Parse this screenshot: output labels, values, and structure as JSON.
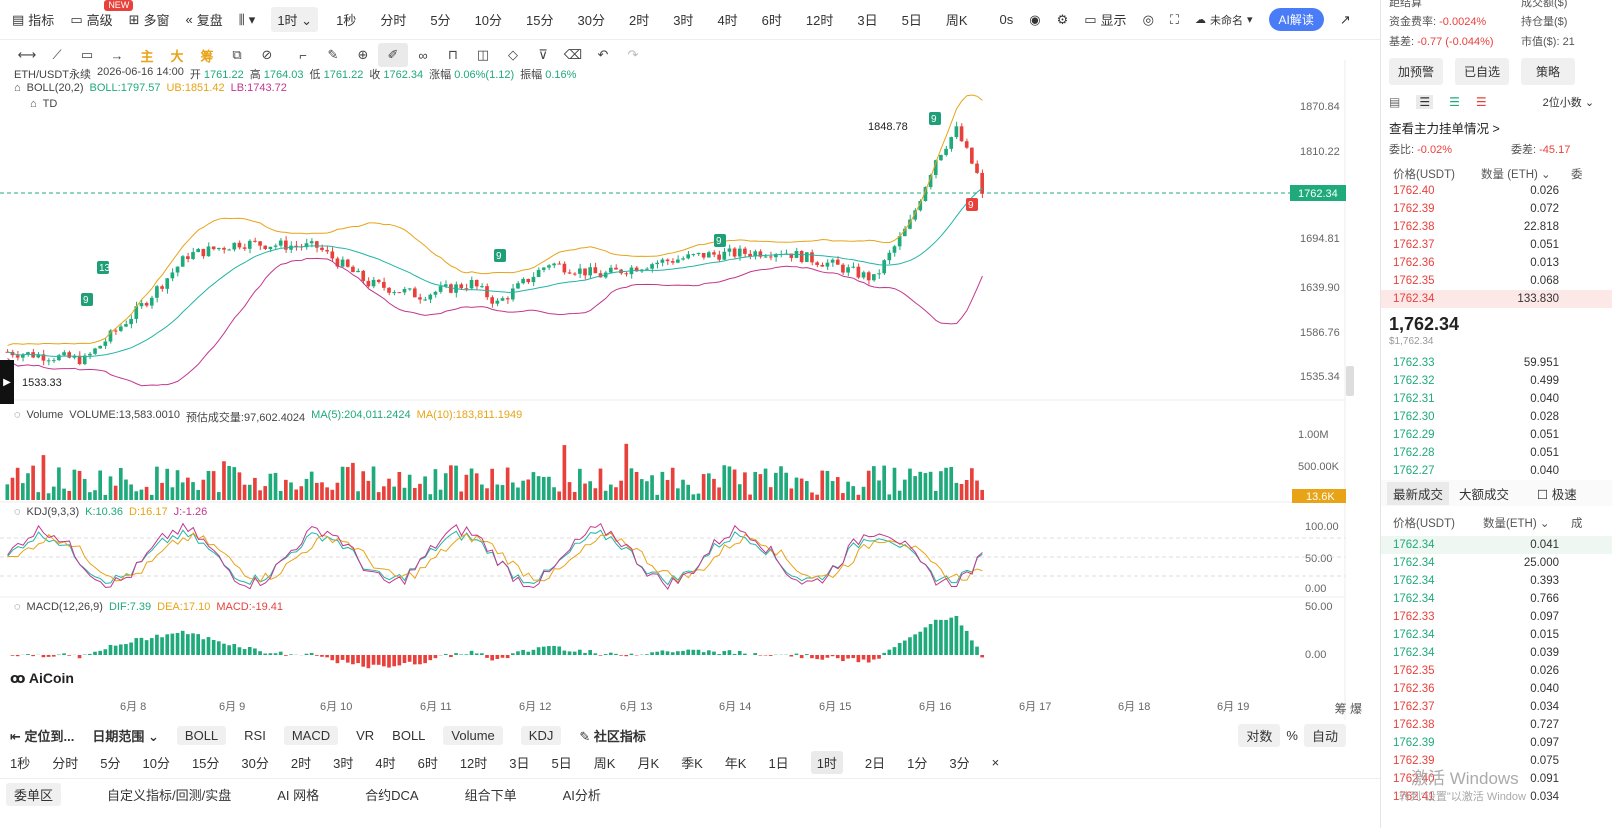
{
  "toolbar": {
    "indicator": "指标",
    "advanced": "高级",
    "new_badge": "NEW",
    "multi": "多窗",
    "replay": "复盘",
    "interval": "1时",
    "intervals": [
      "1秒",
      "分时",
      "5分",
      "10分",
      "15分",
      "30分",
      "2时",
      "3时",
      "4时",
      "6时",
      "12时",
      "3日",
      "5日",
      "周K"
    ],
    "countdown": "0s",
    "display": "显示",
    "account": "未命名",
    "ai": "AI解读"
  },
  "draw_tools": {
    "main": "主",
    "big": "大",
    "chips": "筹"
  },
  "chart_info": {
    "pair": "ETH/USDT永续",
    "time": "2026-06-16 14:00",
    "open_l": "开",
    "open": "1761.22",
    "high_l": "高",
    "high": "1764.03",
    "low_l": "低",
    "low": "1761.22",
    "close_l": "收",
    "close": "1762.34",
    "chg_l": "涨幅",
    "chg": "0.06%(1.12)",
    "amp_l": "振幅",
    "amp": "0.16%"
  },
  "boll": {
    "label": "BOLL(20,2)",
    "boll": "BOLL:1797.57",
    "ub": "UB:1851.42",
    "lb": "LB:1743.72"
  },
  "td": {
    "label": "TD"
  },
  "price_axis": [
    "1870.84",
    "1810.22",
    "1694.81",
    "1639.90",
    "1586.76",
    "1535.34"
  ],
  "current_price_tag": "1762.34",
  "annotations": {
    "high": "1848.78",
    "low": "1533.33",
    "td": [
      "13",
      "9",
      "9",
      "9",
      "9",
      "9"
    ],
    "td_red": "9"
  },
  "volume": {
    "label": "Volume",
    "vol": "VOLUME:13,583.0010",
    "est": "预估成交量:97,602.4024",
    "ma5": "MA(5):204,011.2424",
    "ma10": "MA(10):183,811.1949",
    "axis": [
      "1.00M",
      "500.00K"
    ],
    "tag": "13.6K"
  },
  "kdj": {
    "label": "KDJ(9,3,3)",
    "k": "K:10.36",
    "d": "D:16.17",
    "j": "J:-1.26",
    "axis": [
      "100.00",
      "50.00",
      "0.00"
    ]
  },
  "macd": {
    "label": "MACD(12,26,9)",
    "dif": "DIF:7.39",
    "dea": "DEA:17.10",
    "macd": "MACD:-19.41",
    "axis": [
      "50.00",
      "0.00"
    ]
  },
  "logo": "AiCoin",
  "dates": [
    "6月 8",
    "6月 9",
    "6月 10",
    "6月 11",
    "6月 12",
    "6月 13",
    "6月 14",
    "6月 15",
    "6月 16",
    "6月 17",
    "6月 18",
    "6月 19"
  ],
  "axis_corner": "筹 爆",
  "bottom1": {
    "locate": "定位到...",
    "range": "日期范围",
    "boll": "BOLL",
    "rsi": "RSI",
    "macd": "MACD",
    "vr": "VR",
    "boll2": "BOLL",
    "volume": "Volume",
    "kdj": "KDJ",
    "community": "社区指标",
    "log": "对数",
    "pct": "%",
    "auto": "自动"
  },
  "bottom2": [
    "1秒",
    "分时",
    "5分",
    "10分",
    "15分",
    "30分",
    "2时",
    "3时",
    "4时",
    "6时",
    "12时",
    "3日",
    "5日",
    "周K",
    "月K",
    "季K",
    "年K",
    "1日",
    "1时",
    "2日",
    "1分",
    "3分",
    "×"
  ],
  "bottom3": [
    "委单区",
    "自定义指标/回测/实盘",
    "AI 网格",
    "合约DCA",
    "组合下单",
    "AI分析"
  ],
  "right": {
    "top_cut1": "距结算",
    "top_cut2": "成交额($)",
    "funding_l": "资金费率:",
    "funding": "-0.0024%",
    "oi_l": "持仓量($)",
    "basis_l": "基差:",
    "basis": "-0.77 (-0.044%)",
    "mkt_l": "市值($):",
    "mkt": "21",
    "buttons": [
      "加预警",
      "已自选",
      "策略"
    ],
    "precision": "2位小数",
    "main_orders": "查看主力挂单情况 >",
    "ratio_l": "委比:",
    "ratio": "-0.02%",
    "diff_l": "委差:",
    "diff": "-45.17",
    "col_price": "价格(USDT)",
    "col_qty": "数量 (ETH)",
    "col_x": "委",
    "asks": [
      [
        "1762.40",
        "0.026"
      ],
      [
        "1762.39",
        "0.072"
      ],
      [
        "1762.38",
        "22.818"
      ],
      [
        "1762.37",
        "0.051"
      ],
      [
        "1762.36",
        "0.013"
      ],
      [
        "1762.35",
        "0.068"
      ],
      [
        "1762.34",
        "133.830"
      ]
    ],
    "last": "1,762.34",
    "last_usd": "$1,762.34",
    "bids": [
      [
        "1762.33",
        "59.951"
      ],
      [
        "1762.32",
        "0.499"
      ],
      [
        "1762.31",
        "0.040"
      ],
      [
        "1762.30",
        "0.028"
      ],
      [
        "1762.29",
        "0.051"
      ],
      [
        "1762.28",
        "0.051"
      ],
      [
        "1762.27",
        "0.040"
      ]
    ],
    "tabs": [
      "最新成交",
      "大额成交"
    ],
    "fast": "极速",
    "t_col_price": "价格(USDT)",
    "t_col_qty": "数量(ETH)",
    "t_col_x": "成",
    "trades": [
      [
        "1762.34",
        "0.041",
        "g"
      ],
      [
        "1762.34",
        "25.000",
        "g"
      ],
      [
        "1762.34",
        "0.393",
        "g"
      ],
      [
        "1762.34",
        "0.766",
        "g"
      ],
      [
        "1762.33",
        "0.097",
        "r"
      ],
      [
        "1762.34",
        "0.015",
        "g"
      ],
      [
        "1762.34",
        "0.039",
        "g"
      ],
      [
        "1762.35",
        "0.026",
        "r"
      ],
      [
        "1762.36",
        "0.040",
        "r"
      ],
      [
        "1762.37",
        "0.034",
        "r"
      ],
      [
        "1762.38",
        "0.727",
        "r"
      ],
      [
        "1762.39",
        "0.097",
        "g"
      ],
      [
        "1762.39",
        "0.075",
        "r"
      ],
      [
        "1762.40",
        "0.091",
        "r"
      ],
      [
        "1762.41",
        "0.034",
        "r"
      ]
    ],
    "watermark1": "激活 Windows",
    "watermark2": "转到\"设置\"以激活 Window"
  },
  "colors": {
    "up": "#1faa7c",
    "down": "#e8413c",
    "boll_mid": "#1fb5a5",
    "boll_up": "#e8a317",
    "boll_low": "#c2378e",
    "accent": "#4a7cf7"
  }
}
